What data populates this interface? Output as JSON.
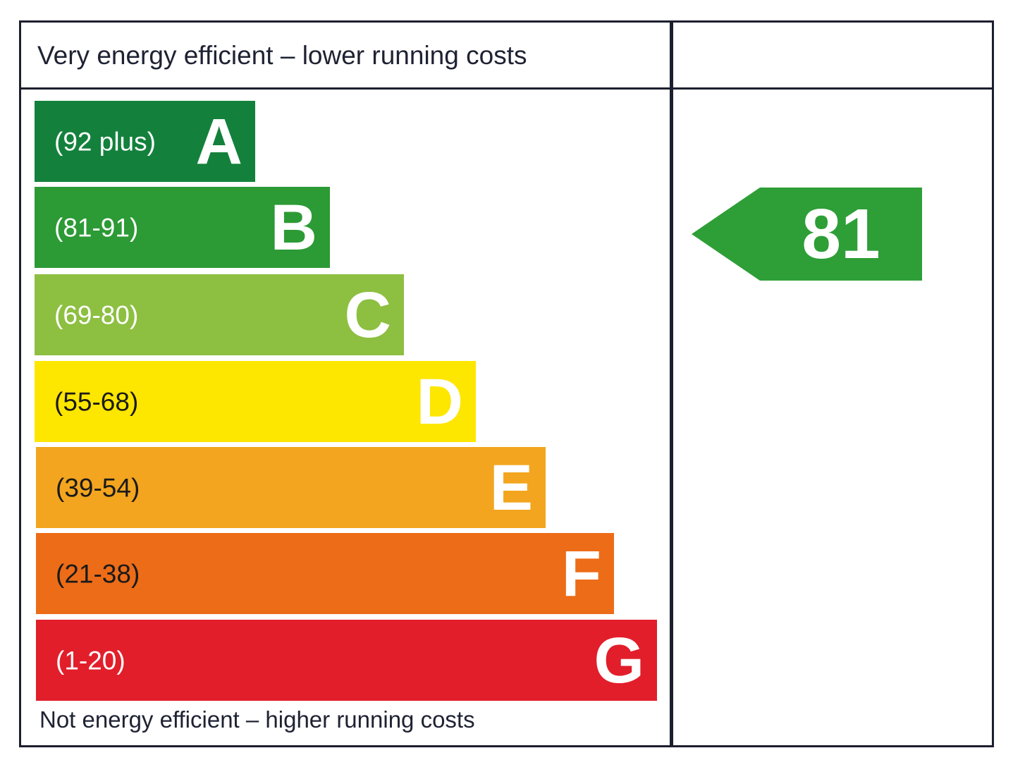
{
  "header": {
    "top_caption": "Very energy efficient – lower running costs"
  },
  "footer": {
    "bottom_caption": "Not energy efficient – higher running costs"
  },
  "chart_data": {
    "type": "bar",
    "categories": [
      "A",
      "B",
      "C",
      "D",
      "E",
      "F",
      "G"
    ],
    "ranges": [
      "(92 plus)",
      "(81-91)",
      "(69-80)",
      "(55-68)",
      "(39-54)",
      "(21-38)",
      "(1-20)"
    ],
    "colors": [
      "#13813c",
      "#2c9a35",
      "#8dbf41",
      "#fde600",
      "#f3a51f",
      "#ed6c18",
      "#e21e2b"
    ],
    "range_text_colors": [
      "#ffffff",
      "#ffffff",
      "#ffffff",
      "#1a1a1a",
      "#1a1a1a",
      "#1a1a1a",
      "#ffffff"
    ],
    "current": {
      "value": "81",
      "band": "B",
      "color": "#2e9e37"
    }
  }
}
